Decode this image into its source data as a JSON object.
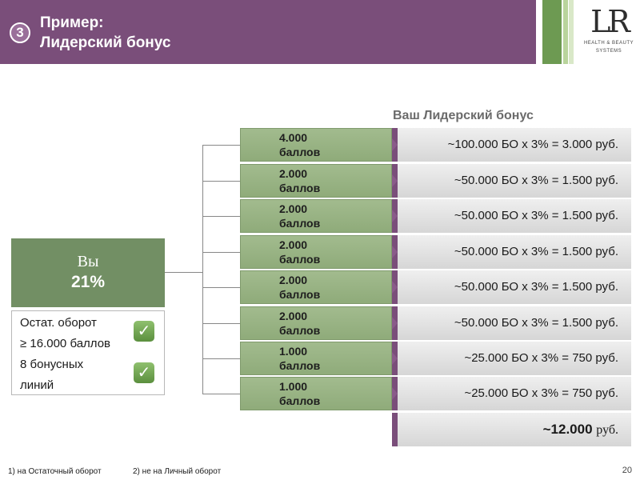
{
  "header": {
    "step_number": "3",
    "title_line1": "Пример:",
    "title_line2": "Лидерский бонус",
    "logo_text": "LR",
    "logo_sub1": "HEALTH & BEAUTY",
    "logo_sub2": "SYSTEMS"
  },
  "colors": {
    "header_purple": "#7a4e7a",
    "green_box": "#728f64",
    "green_stripe": "#6d9a52"
  },
  "you": {
    "label": "Вы",
    "percent": "21%",
    "conditions": [
      "Остат. оборот",
      "≥ 16.000 баллов",
      "8 бонусных",
      "линий"
    ]
  },
  "section_title": "Ваш Лидерский бонус",
  "lines": [
    {
      "points": "4.000 баллов",
      "calc": "~100.000 БО х 3% = 3.000 руб."
    },
    {
      "points": "2.000 баллов",
      "calc": "~50.000 БО х 3% = 1.500 руб."
    },
    {
      "points": "2.000 баллов",
      "calc": "~50.000 БО х 3% = 1.500 руб."
    },
    {
      "points": "2.000 баллов",
      "calc": "~50.000 БО х 3% = 1.500 руб."
    },
    {
      "points": "2.000 баллов",
      "calc": "~50.000 БО х 3% = 1.500 руб."
    },
    {
      "points": "2.000 баллов",
      "calc": "~50.000 БО х 3% = 1.500 руб."
    },
    {
      "points": "1.000 баллов",
      "calc": "~25.000 БО х 3% = 750 руб."
    },
    {
      "points": "1.000 баллов",
      "calc": "~25.000 БО х 3% = 750 руб."
    }
  ],
  "total": {
    "amount": "~12.000",
    "unit": "руб."
  },
  "footer": {
    "note1": "1)  на Остаточный оборот",
    "note2": "2) не на Личный оборот",
    "page": "20"
  }
}
